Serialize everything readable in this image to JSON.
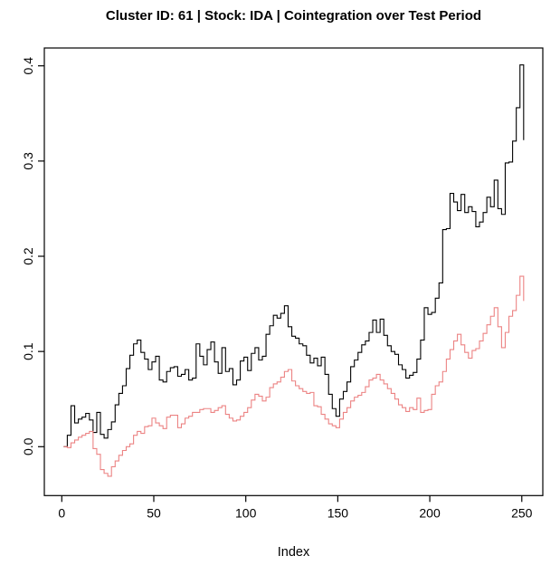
{
  "title": "Cluster ID: 61 | Stock: IDA | Cointegration over Test Period",
  "chart_data": {
    "type": "line",
    "title": "Cluster ID: 61 | Stock: IDA | Cointegration over Test Period",
    "xlabel": "Index",
    "ylabel": "",
    "step_style": true,
    "grid": false,
    "legend": "none",
    "background": "#ffffff",
    "frame_color": "#000000",
    "xlim": [
      -9.49,
      261.42
    ],
    "ylim": [
      -0.05135,
      0.41874
    ],
    "x_ticks": [
      0,
      50,
      100,
      150,
      200,
      250
    ],
    "x_tick_labels": [
      "0",
      "50",
      "100",
      "150",
      "200",
      "250"
    ],
    "y_ticks": [
      0.0,
      0.1,
      0.2,
      0.3,
      0.4
    ],
    "y_tick_labels": [
      "0.0",
      "0.1",
      "0.2",
      "0.3",
      "0.4"
    ],
    "x_start": 1,
    "x_step": 2,
    "series": [
      {
        "name": "series-black",
        "color": "#000000",
        "values": [
          0.0,
          0.012,
          0.043,
          0.025,
          0.029,
          0.031,
          0.035,
          0.028,
          0.015,
          0.036,
          0.013,
          0.009,
          0.018,
          0.026,
          0.044,
          0.056,
          0.064,
          0.082,
          0.096,
          0.108,
          0.112,
          0.099,
          0.092,
          0.081,
          0.089,
          0.095,
          0.07,
          0.068,
          0.079,
          0.083,
          0.084,
          0.074,
          0.076,
          0.081,
          0.07,
          0.072,
          0.108,
          0.095,
          0.086,
          0.102,
          0.11,
          0.089,
          0.077,
          0.104,
          0.079,
          0.082,
          0.065,
          0.07,
          0.09,
          0.094,
          0.08,
          0.098,
          0.104,
          0.091,
          0.095,
          0.118,
          0.127,
          0.138,
          0.135,
          0.14,
          0.148,
          0.126,
          0.116,
          0.114,
          0.108,
          0.106,
          0.096,
          0.088,
          0.093,
          0.085,
          0.094,
          0.076,
          0.055,
          0.04,
          0.032,
          0.05,
          0.058,
          0.068,
          0.084,
          0.091,
          0.099,
          0.107,
          0.111,
          0.12,
          0.133,
          0.12,
          0.134,
          0.117,
          0.106,
          0.1,
          0.097,
          0.086,
          0.081,
          0.072,
          0.075,
          0.078,
          0.092,
          0.112,
          0.146,
          0.139,
          0.141,
          0.156,
          0.172,
          0.228,
          0.229,
          0.266,
          0.257,
          0.248,
          0.265,
          0.246,
          0.252,
          0.247,
          0.231,
          0.236,
          0.246,
          0.262,
          0.252,
          0.28,
          0.25,
          0.244,
          0.298,
          0.299,
          0.321,
          0.356,
          0.401,
          0.322
        ]
      },
      {
        "name": "series-red",
        "color": "#ec8383",
        "values": [
          0.0,
          -0.001,
          0.004,
          0.007,
          0.01,
          0.012,
          0.014,
          0.016,
          -0.002,
          -0.008,
          -0.024,
          -0.028,
          -0.031,
          -0.021,
          -0.015,
          -0.009,
          -0.004,
          0.0,
          0.003,
          0.012,
          0.016,
          0.014,
          0.021,
          0.022,
          0.03,
          0.025,
          0.022,
          0.019,
          0.031,
          0.033,
          0.033,
          0.02,
          0.024,
          0.03,
          0.032,
          0.036,
          0.036,
          0.039,
          0.04,
          0.04,
          0.036,
          0.038,
          0.041,
          0.043,
          0.034,
          0.03,
          0.027,
          0.028,
          0.032,
          0.036,
          0.041,
          0.049,
          0.055,
          0.053,
          0.048,
          0.052,
          0.062,
          0.066,
          0.068,
          0.073,
          0.079,
          0.081,
          0.069,
          0.064,
          0.061,
          0.058,
          0.056,
          0.057,
          0.043,
          0.042,
          0.034,
          0.029,
          0.024,
          0.022,
          0.02,
          0.029,
          0.036,
          0.041,
          0.048,
          0.052,
          0.054,
          0.057,
          0.063,
          0.07,
          0.072,
          0.076,
          0.07,
          0.066,
          0.061,
          0.056,
          0.05,
          0.044,
          0.041,
          0.037,
          0.041,
          0.039,
          0.051,
          0.036,
          0.038,
          0.039,
          0.055,
          0.064,
          0.068,
          0.079,
          0.092,
          0.102,
          0.111,
          0.118,
          0.107,
          0.099,
          0.093,
          0.101,
          0.103,
          0.111,
          0.119,
          0.128,
          0.137,
          0.146,
          0.126,
          0.104,
          0.12,
          0.137,
          0.143,
          0.159,
          0.179,
          0.153
        ]
      }
    ]
  }
}
